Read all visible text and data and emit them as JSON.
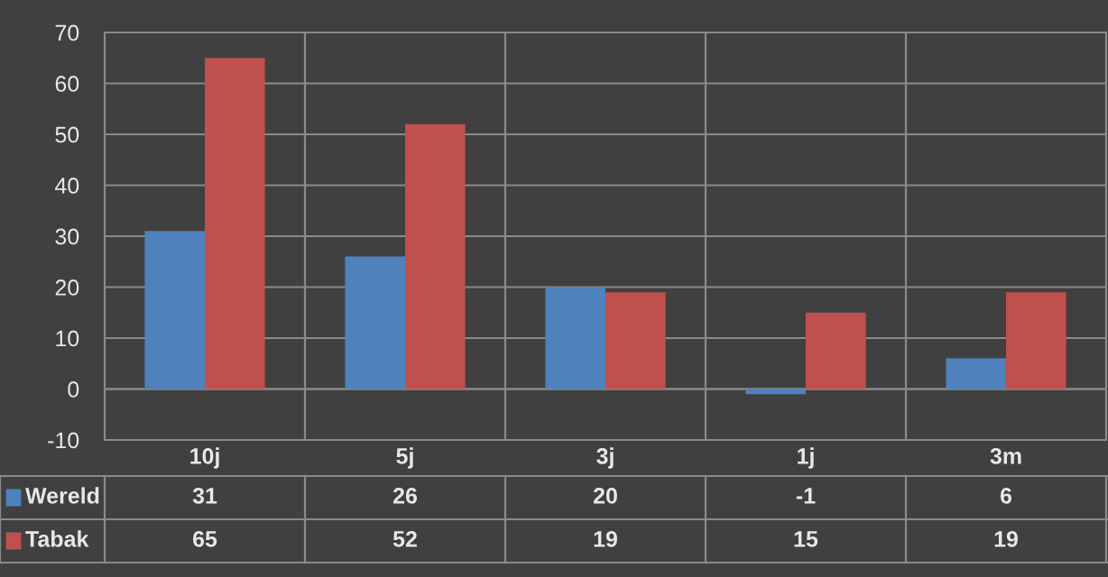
{
  "chart_data": {
    "type": "bar",
    "categories": [
      "10j",
      "5j",
      "3j",
      "1j",
      "3m"
    ],
    "series": [
      {
        "name": "Wereld",
        "color": "#4f81bd",
        "values": [
          31,
          26,
          20,
          -1,
          6
        ]
      },
      {
        "name": "Tabak",
        "color": "#c0504d",
        "values": [
          65,
          52,
          19,
          15,
          19
        ]
      }
    ],
    "ylim": [
      -10,
      70
    ],
    "yticks": [
      -10,
      0,
      10,
      20,
      30,
      40,
      50,
      60,
      70
    ],
    "grid": true,
    "legend": "bottom",
    "data_labels": true
  }
}
